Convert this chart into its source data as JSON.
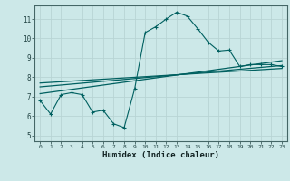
{
  "xlabel": "Humidex (Indice chaleur)",
  "bg_color": "#cce8e8",
  "grid_color": "#b8d4d4",
  "line_color": "#006060",
  "x_ticks": [
    0,
    1,
    2,
    3,
    4,
    5,
    6,
    7,
    8,
    9,
    10,
    11,
    12,
    13,
    14,
    15,
    16,
    17,
    18,
    19,
    20,
    21,
    22,
    23
  ],
  "y_ticks": [
    5,
    6,
    7,
    8,
    9,
    10,
    11
  ],
  "xlim": [
    -0.5,
    23.5
  ],
  "ylim": [
    4.7,
    11.7
  ],
  "line1_x": [
    0,
    1,
    2,
    3,
    4,
    5,
    6,
    7,
    8,
    9,
    10,
    11,
    12,
    13,
    14,
    15,
    16,
    17,
    18,
    19,
    20,
    21,
    22,
    23
  ],
  "line1_y": [
    6.8,
    6.1,
    7.1,
    7.2,
    7.1,
    6.2,
    6.3,
    5.6,
    5.4,
    7.4,
    10.3,
    10.6,
    11.0,
    11.35,
    11.15,
    10.5,
    9.8,
    9.35,
    9.4,
    8.55,
    8.65,
    8.65,
    8.65,
    8.55
  ],
  "line2_x": [
    0,
    23
  ],
  "line2_y": [
    7.15,
    8.85
  ],
  "line3_x": [
    0,
    23
  ],
  "line3_y": [
    7.5,
    8.6
  ],
  "line4_x": [
    0,
    23
  ],
  "line4_y": [
    7.7,
    8.45
  ]
}
